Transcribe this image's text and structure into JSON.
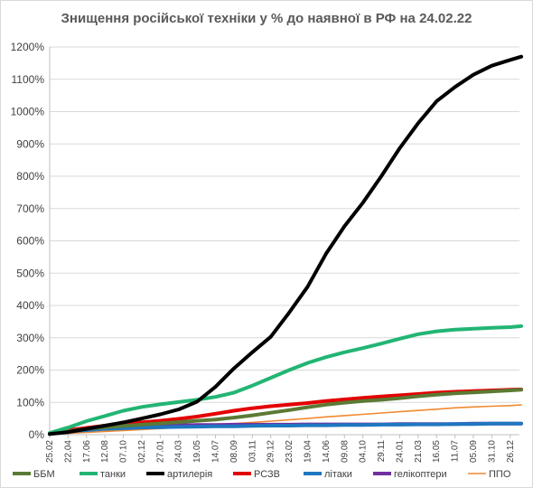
{
  "chart_data": {
    "type": "line",
    "title": "Знищення російської техніки у % до наявної в РФ на 24.02.22",
    "xlabel": "",
    "ylabel": "",
    "ylim": [
      0,
      1200
    ],
    "y_ticks": [
      "0%",
      "100%",
      "200%",
      "300%",
      "400%",
      "500%",
      "600%",
      "700%",
      "800%",
      "900%",
      "1000%",
      "1100%",
      "1200%"
    ],
    "x_ticks": [
      "25.02",
      "22.04",
      "17.06",
      "12.08",
      "07.10",
      "02.12",
      "27.01",
      "24.03",
      "19.05",
      "14.07",
      "08.09",
      "03.11",
      "29.12",
      "23.02",
      "19.04",
      "14.06",
      "09.08",
      "04.10",
      "29.11",
      "24.01",
      "21.03",
      "16.05",
      "11.07",
      "05.09",
      "31.10",
      "26.12"
    ],
    "x": [
      0,
      1,
      2,
      3,
      4,
      5,
      6,
      7,
      8,
      9,
      10,
      11,
      12,
      13,
      14,
      15,
      16,
      17,
      18,
      19,
      20,
      21,
      22,
      23,
      24,
      25,
      25.6
    ],
    "grid": true,
    "legend_position": "bottom",
    "series": [
      {
        "name": "ББМ",
        "color": "#5b7a34",
        "width": 4,
        "values": [
          3,
          10,
          18,
          23,
          27,
          31,
          35,
          39,
          43,
          47,
          53,
          60,
          68,
          76,
          85,
          93,
          99,
          104,
          108,
          113,
          119,
          124,
          128,
          131,
          134,
          137,
          139
        ]
      },
      {
        "name": "танки",
        "color": "#22b573",
        "width": 4,
        "values": [
          5,
          22,
          42,
          58,
          74,
          86,
          94,
          101,
          108,
          117,
          130,
          152,
          176,
          200,
          222,
          240,
          255,
          268,
          282,
          297,
          311,
          320,
          325,
          328,
          331,
          333,
          336
        ]
      },
      {
        "name": "артилерія",
        "color": "#000000",
        "width": 4,
        "values": [
          2,
          8,
          18,
          28,
          38,
          50,
          63,
          78,
          102,
          148,
          205,
          255,
          303,
          378,
          458,
          560,
          645,
          718,
          800,
          887,
          964,
          1032,
          1076,
          1114,
          1142,
          1160,
          1170
        ]
      },
      {
        "name": "РСЗВ",
        "color": "#e30000",
        "width": 4,
        "values": [
          4,
          14,
          21,
          28,
          33,
          38,
          43,
          49,
          56,
          65,
          74,
          82,
          88,
          93,
          98,
          104,
          109,
          114,
          118,
          122,
          126,
          130,
          133,
          135,
          137,
          139,
          140
        ]
      },
      {
        "name": "літаки",
        "color": "#1f77c0",
        "width": 4,
        "values": [
          2,
          10,
          14,
          18,
          20,
          22,
          23,
          24,
          25,
          26,
          26,
          27,
          28,
          28,
          29,
          29,
          30,
          30,
          31,
          31,
          32,
          32,
          33,
          33,
          34,
          34,
          34
        ]
      },
      {
        "name": "гелікоптери",
        "color": "#7030a0",
        "width": 4,
        "values": [
          3,
          12,
          18,
          22,
          25,
          27,
          28,
          29,
          30,
          30,
          31,
          31,
          31,
          31,
          32,
          32,
          32,
          32,
          32,
          33,
          33,
          33,
          33,
          34,
          34,
          34,
          34
        ]
      },
      {
        "name": "ППО",
        "color": "#f08a30",
        "width": 1.6,
        "values": [
          1,
          4,
          7,
          10,
          13,
          16,
          19,
          22,
          26,
          30,
          34,
          38,
          42,
          46,
          50,
          55,
          59,
          63,
          67,
          71,
          75,
          79,
          83,
          86,
          88,
          90,
          92
        ]
      }
    ]
  }
}
